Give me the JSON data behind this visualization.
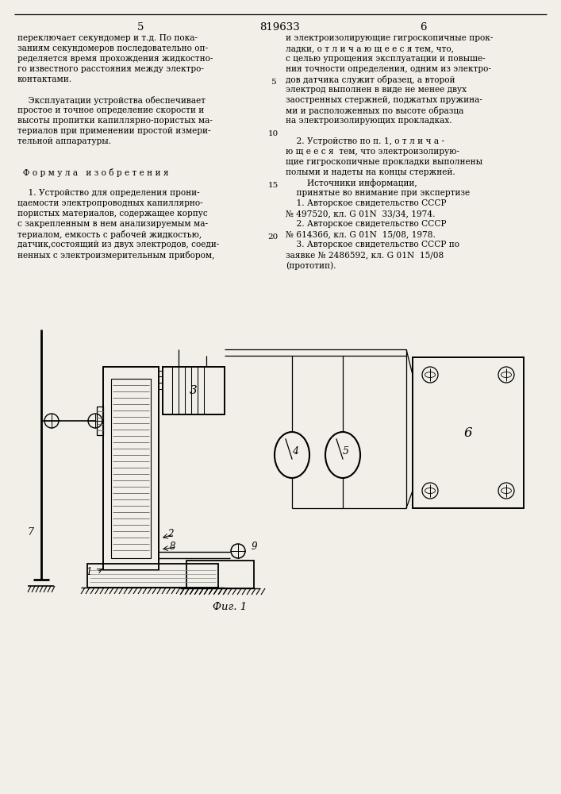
{
  "bg_color": "#f2efe8",
  "page_num_left": "5",
  "page_num_center": "819633",
  "page_num_right": "6",
  "col1_lines": [
    "переключает секундомер и т.д. По пока-",
    "заниям секундомеров последовательно оп-",
    "ределяется время прохождения жидкостно-",
    "го известного расстояния между электро-",
    "контактами.",
    "",
    "    Эксплуатации устройства обеспечивает",
    "простое и точное определение скорости и",
    "высоты пропитки капиллярно-пористых ма-",
    "териалов при применении простой измери-",
    "тельной аппаратуры.",
    "",
    "",
    "  Ф о р м у л а   и з о б р е т е н и я",
    "",
    "    1. Устройство для определения прони-",
    "цаемости электропроводных капиллярно-",
    "пористых материалов, содержащее корпус",
    "с закрепленным в нем анализируемым ма-",
    "териалом, емкость с рабочей жидкостью,",
    "датчик,состоящий из двух электродов, соеди-",
    "ненных с электроизмерительным прибором,"
  ],
  "col2_lines": [
    "и электроизолирующие гигроскопичные прок-",
    "ладки, о т л и ч а ю щ е е с я тем, что,",
    "с целью упрощения эксплуатации и повыше-",
    "ния точности определения, одним из электро-",
    "дов датчика служит образец, а второй",
    "электрод выполнен в виде не менее двух",
    "заостренных стержней, поджатых пружина-",
    "ми и расположенных по высоте образца",
    "на электроизолирующих прокладках.",
    "",
    "    2. Устройство по п. 1, о т л и ч а -",
    "ю щ е е с я  тем, что электроизолирую-",
    "щие гигроскопичные прокладки выполнены",
    "полыми и надеты на концы стержней.",
    "        Источники информации,",
    "    принятые во внимание при экспертизе",
    "    1. Авторское свидетельство СССР",
    "№ 497520, кл. G 01N  33/34, 1974.",
    "    2. Авторское свидетельство СССР",
    "№ 614366, кл. G 01N  15/08, 1978.",
    "    3. Авторское свидетельство СССР по",
    "заявке № 2486592, кл. G 01N  15/08",
    "(прототип)."
  ],
  "line_numbers": [
    {
      "num": "5",
      "row": 4
    },
    {
      "num": "10",
      "row": 9
    },
    {
      "num": "15",
      "row": 14
    },
    {
      "num": "20",
      "row": 19
    }
  ],
  "fig_label": "Фиг. 1"
}
